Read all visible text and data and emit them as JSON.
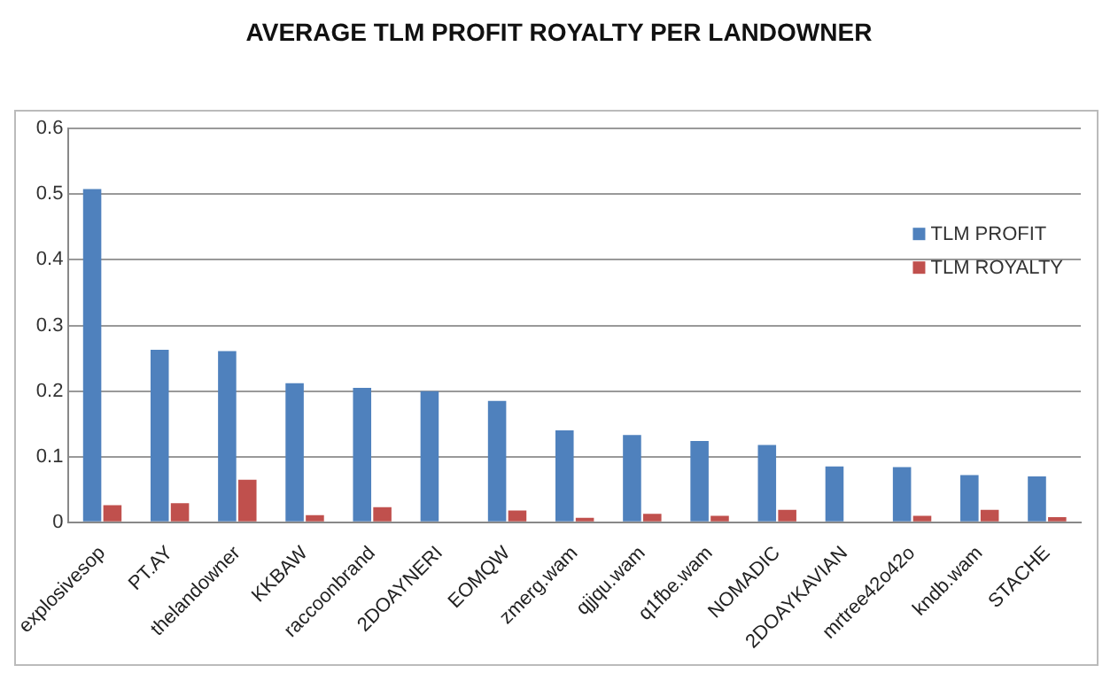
{
  "chart_data": {
    "type": "bar",
    "title": "AVERAGE TLM PROFIT ROYALTY PER LANDOWNER",
    "categories": [
      "explosivesop",
      "PT.AY",
      "thelandowner",
      "KKBAW",
      "raccoonbrand",
      "2DOAYNERI",
      "EOMQW",
      "zmerg.wam",
      "qjjqu.wam",
      "q1fbe.wam",
      "NOMADIC",
      "2DOAYKAVIAN",
      "mrtree42o42o",
      "kndb.wam",
      "STACHE"
    ],
    "series": [
      {
        "name": "TLM PROFIT",
        "color": "#4f81bd",
        "values": [
          0.508,
          0.263,
          0.261,
          0.212,
          0.205,
          0.2,
          0.185,
          0.14,
          0.133,
          0.124,
          0.118,
          0.085,
          0.084,
          0.072,
          0.07
        ]
      },
      {
        "name": "TLM ROYALTY",
        "color": "#c0504d",
        "values": [
          0.026,
          0.029,
          0.065,
          0.011,
          0.023,
          0,
          0.018,
          0.007,
          0.013,
          0.01,
          0.019,
          0,
          0.01,
          0.019,
          0.008
        ]
      }
    ],
    "ylim": [
      0,
      0.6
    ],
    "yticks": [
      0,
      0.1,
      0.2,
      0.3,
      0.4,
      0.5,
      0.6
    ],
    "grid": "y",
    "legend": "top right"
  }
}
